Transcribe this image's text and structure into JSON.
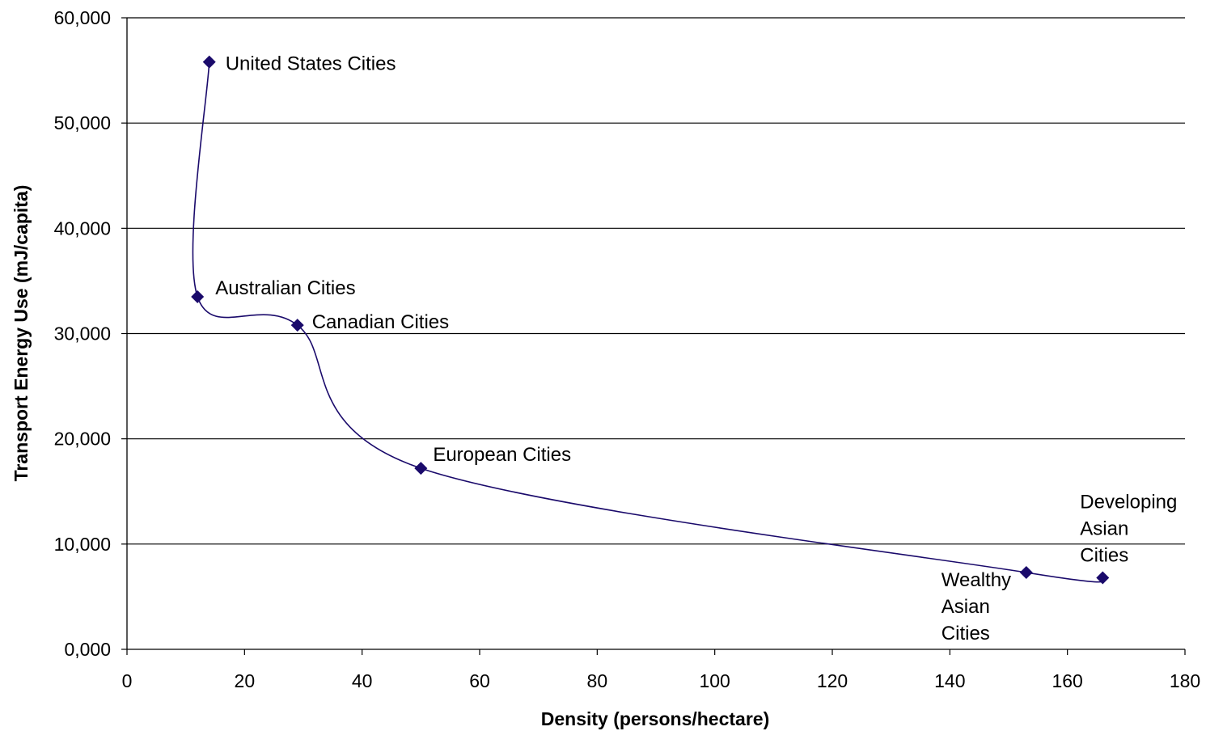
{
  "chart_data": {
    "type": "line",
    "smooth": true,
    "xlabel": "Density (persons/hectare)",
    "ylabel": "Transport Energy Use (mJ/capita)",
    "xlim": [
      0,
      180
    ],
    "ylim": [
      0,
      60000
    ],
    "xticks": [
      0,
      20,
      40,
      60,
      80,
      100,
      120,
      140,
      160,
      180
    ],
    "xtick_labels": [
      "0",
      "20",
      "40",
      "60",
      "80",
      "100",
      "120",
      "140",
      "160",
      "180"
    ],
    "yticks": [
      0,
      10000,
      20000,
      30000,
      40000,
      50000,
      60000
    ],
    "ytick_labels": [
      "0,000",
      "10,000",
      "20,000",
      "30,000",
      "40,000",
      "50,000",
      "60,000"
    ],
    "grid": "horizontal",
    "legend": "none",
    "color": "#1a0a6b",
    "marker": "diamond",
    "points": [
      {
        "label": "United States Cities",
        "x": 14,
        "y": 55800
      },
      {
        "label": "Australian Cities",
        "x": 12,
        "y": 33500
      },
      {
        "label": "Canadian Cities",
        "x": 29,
        "y": 30800
      },
      {
        "label": "European Cities",
        "x": 50,
        "y": 17200
      },
      {
        "label": "Wealthy Asian Cities",
        "x": 153,
        "y": 7300
      },
      {
        "label": "Developing Asian Cities",
        "x": 166,
        "y": 6800
      }
    ]
  }
}
